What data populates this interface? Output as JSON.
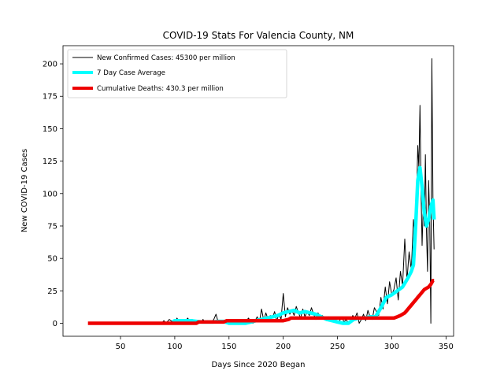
{
  "chart_data": {
    "type": "line",
    "title": "COVID-19 Stats For Valencia County, NM",
    "xlabel": "Days Since 2020 Began",
    "ylabel": "New COVID-19 Cases",
    "xlim": [
      -3,
      357
    ],
    "ylim": [
      -10,
      214
    ],
    "xticks": [
      50,
      100,
      150,
      200,
      250,
      300,
      350
    ],
    "yticks": [
      0,
      25,
      50,
      75,
      100,
      125,
      150,
      175,
      200
    ],
    "grid": false,
    "legend_position": "top-left",
    "series": [
      {
        "name": "New Confirmed Cases: 45300 per million",
        "color": "#000000",
        "x": [
          88,
          90,
          92,
          95,
          98,
          100,
          102,
          104,
          106,
          108,
          110,
          112,
          114,
          116,
          118,
          120,
          122,
          124,
          126,
          128,
          130,
          132,
          134,
          136,
          138,
          140,
          142,
          144,
          146,
          148,
          150,
          152,
          154,
          156,
          158,
          160,
          162,
          164,
          166,
          168,
          170,
          172,
          174,
          176,
          178,
          180,
          182,
          184,
          186,
          188,
          190,
          192,
          194,
          196,
          198,
          200,
          202,
          204,
          206,
          208,
          210,
          212,
          214,
          216,
          218,
          220,
          222,
          224,
          226,
          228,
          230,
          232,
          234,
          236,
          238,
          240,
          242,
          244,
          246,
          248,
          250,
          252,
          254,
          256,
          258,
          260,
          262,
          264,
          266,
          268,
          270,
          272,
          274,
          276,
          278,
          280,
          282,
          284,
          286,
          288,
          290,
          292,
          294,
          296,
          298,
          300,
          302,
          304,
          306,
          308,
          310,
          312,
          314,
          316,
          318,
          320,
          322,
          324,
          325,
          326,
          327,
          328,
          329,
          330,
          331,
          332,
          333,
          334,
          335,
          336,
          337,
          338,
          339
        ],
        "y": [
          0,
          2,
          0,
          3,
          1,
          0,
          4,
          1,
          3,
          0,
          2,
          4,
          1,
          3,
          0,
          2,
          1,
          0,
          3,
          1,
          2,
          0,
          1,
          3,
          7,
          1,
          0,
          2,
          1,
          3,
          0,
          1,
          2,
          0,
          1,
          3,
          1,
          0,
          2,
          4,
          1,
          0,
          2,
          5,
          1,
          11,
          2,
          8,
          3,
          6,
          4,
          9,
          2,
          7,
          3,
          23,
          5,
          12,
          7,
          10,
          6,
          13,
          8,
          4,
          11,
          5,
          9,
          6,
          12,
          7,
          3,
          8,
          5,
          6,
          4,
          2,
          5,
          3,
          1,
          4,
          0,
          2,
          5,
          1,
          3,
          0,
          2,
          6,
          4,
          8,
          0,
          3,
          7,
          2,
          10,
          5,
          3,
          12,
          9,
          6,
          20,
          11,
          28,
          15,
          32,
          22,
          26,
          35,
          18,
          40,
          29,
          65,
          33,
          55,
          41,
          80,
          60,
          137,
          120,
          168,
          100,
          60,
          90,
          75,
          130,
          70,
          40,
          110,
          80,
          0,
          204,
          95,
          57
        ]
      },
      {
        "name": "7 Day Case Average",
        "color": "#00ffff",
        "x": [
          98,
          100,
          105,
          110,
          115,
          120,
          125,
          130,
          135,
          140,
          145,
          150,
          155,
          160,
          165,
          170,
          175,
          180,
          185,
          190,
          195,
          200,
          205,
          210,
          215,
          220,
          225,
          230,
          235,
          240,
          245,
          250,
          255,
          260,
          265,
          270,
          275,
          280,
          285,
          290,
          295,
          300,
          305,
          310,
          315,
          318,
          320,
          322,
          324,
          326,
          328,
          330,
          332,
          334,
          336,
          338,
          339
        ],
        "y": [
          1,
          2,
          2,
          2,
          2,
          1.5,
          1,
          1,
          1,
          1.5,
          1.5,
          0,
          0,
          0,
          0,
          1,
          2,
          3,
          4,
          5,
          6,
          8,
          9,
          10,
          8,
          9,
          8,
          7,
          5,
          3,
          2,
          1,
          0,
          0,
          3,
          4,
          4,
          5,
          5,
          12,
          20,
          22,
          25,
          28,
          35,
          40,
          45,
          75,
          110,
          120,
          105,
          85,
          75,
          80,
          90,
          95,
          80
        ]
      },
      {
        "name": "Cumulative Deaths: 430.3 per million",
        "color": "#ee0000",
        "x": [
          20,
          60,
          100,
          120,
          122,
          145,
          148,
          200,
          205,
          207,
          250,
          260,
          275,
          285,
          295,
          300,
          302,
          305,
          308,
          310,
          312,
          314,
          316,
          318,
          320,
          322,
          324,
          326,
          328,
          330,
          332,
          334,
          336,
          338,
          339
        ],
        "y": [
          0,
          0,
          0,
          0,
          1,
          1,
          2,
          2,
          3,
          4,
          4,
          4,
          4,
          4,
          4,
          4,
          4,
          5,
          6,
          7,
          8,
          10,
          12,
          14,
          16,
          18,
          20,
          22,
          24,
          26,
          27,
          28,
          30,
          33,
          33
        ]
      }
    ]
  }
}
